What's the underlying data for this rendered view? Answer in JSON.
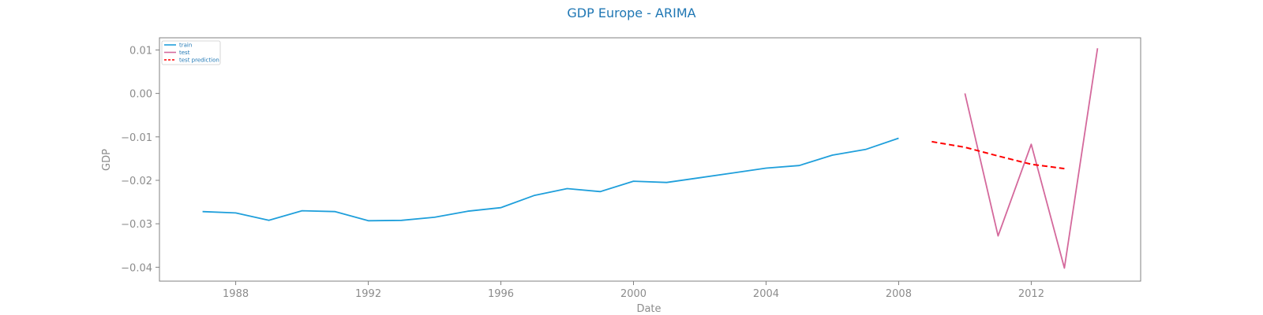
{
  "chart_data": {
    "type": "line",
    "title": "GDP Europe - ARIMA",
    "xlabel": "Date",
    "ylabel": "GDP",
    "xlim": [
      1985.7,
      2015.3
    ],
    "ylim": [
      -0.0432,
      0.0128
    ],
    "x_ticks": [
      1988,
      1992,
      1996,
      2000,
      2004,
      2008,
      2012
    ],
    "x_tick_labels": [
      "1988",
      "1992",
      "1996",
      "2000",
      "2004",
      "2008",
      "2012"
    ],
    "y_ticks": [
      0.01,
      0.0,
      -0.01,
      -0.02,
      -0.03,
      -0.04
    ],
    "y_tick_labels": [
      "0.01",
      "0.00",
      "−0.01",
      "−0.02",
      "−0.03",
      "−0.04"
    ],
    "grid": false,
    "legend_position": "top-left",
    "series": [
      {
        "name": "train",
        "color": "#1f9fdb",
        "dash": "solid",
        "x": [
          1987,
          1988,
          1989,
          1990,
          1991,
          1992,
          1993,
          1994,
          1995,
          1996,
          1997,
          1998,
          1999,
          2000,
          2001,
          2002,
          2003,
          2004,
          2005,
          2006,
          2007,
          2008
        ],
        "y": [
          -0.0272,
          -0.0275,
          -0.0292,
          -0.027,
          -0.0272,
          -0.0293,
          -0.0292,
          -0.0285,
          -0.0271,
          -0.0263,
          -0.0235,
          -0.0219,
          -0.0226,
          -0.0202,
          -0.0205,
          -0.0194,
          -0.0183,
          -0.0172,
          -0.0166,
          -0.0142,
          -0.0129,
          -0.0103
        ]
      },
      {
        "name": "test",
        "color": "#d4699c",
        "dash": "solid",
        "x": [
          2010,
          2011,
          2012,
          2013,
          2014
        ],
        "y": [
          0.0,
          -0.0328,
          -0.0117,
          -0.0402,
          0.0104
        ]
      },
      {
        "name": "test prediction",
        "color": "#ff0000",
        "dash": "dashed",
        "x": [
          2009,
          2010,
          2011,
          2012,
          2013
        ],
        "y": [
          -0.0111,
          -0.0124,
          -0.0144,
          -0.0163,
          -0.0173
        ]
      }
    ]
  }
}
